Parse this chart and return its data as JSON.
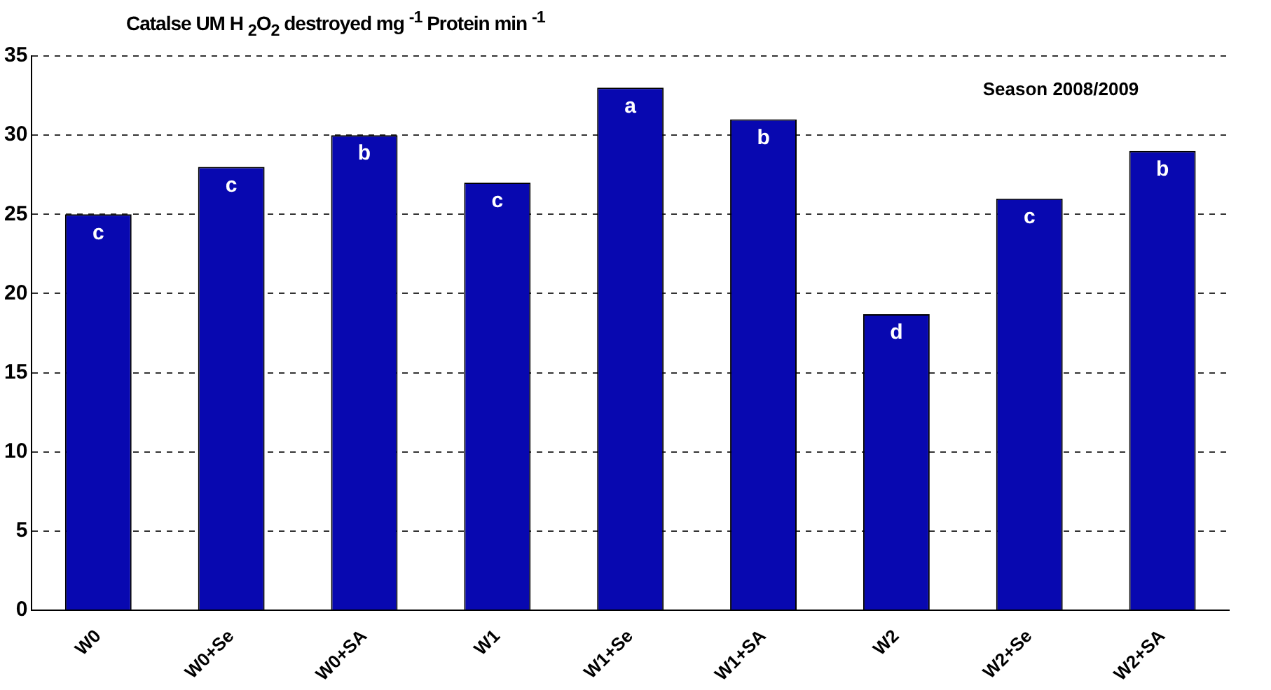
{
  "chart_data": {
    "type": "bar",
    "ylabel": "Catalse UM H $_{2}$O$_{2}$ destroyed mg $^{-1}$ Protein min $^{-1}$",
    "annotations": [
      "Season 2008/2009"
    ],
    "categories": [
      "W0",
      "W0+Se",
      "W0+SA",
      "W1",
      "W1+Se",
      "W1+SA",
      "W2",
      "W2+Se",
      "W2+SA"
    ],
    "values": [
      25,
      28,
      30,
      27,
      33,
      31,
      18.7,
      26,
      29
    ],
    "value_labels": [
      "c",
      "c",
      "b",
      "c",
      "a",
      "b",
      "d",
      "c",
      "b"
    ],
    "color": "#0808b0",
    "ylim": [
      0,
      35
    ],
    "yticks": [
      0,
      5,
      10,
      15,
      20,
      25,
      30,
      35
    ],
    "grid": "y"
  }
}
